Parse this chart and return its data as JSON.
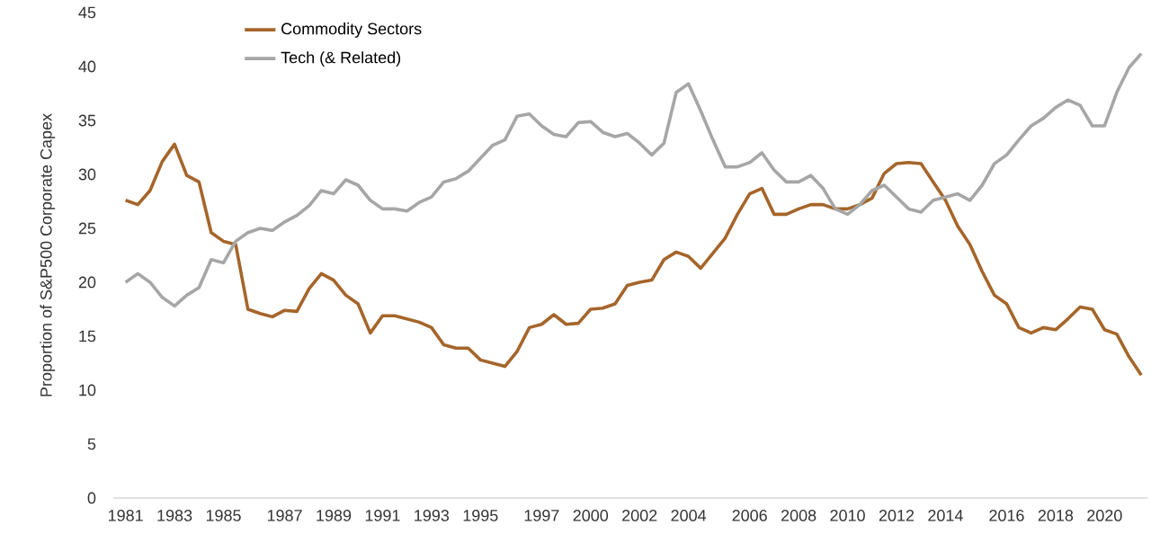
{
  "chart_data": {
    "type": "line",
    "ylabel": "Proportion of S&P500 Corporate Capex",
    "categories": [
      "1981",
      null,
      null,
      null,
      "1983",
      null,
      null,
      null,
      "1985",
      null,
      null,
      null,
      null,
      "1987",
      null,
      null,
      null,
      "1989",
      null,
      null,
      null,
      "1991",
      null,
      null,
      null,
      "1993",
      null,
      null,
      null,
      "1995",
      null,
      null,
      null,
      null,
      "1997",
      null,
      null,
      null,
      "2000",
      null,
      null,
      null,
      "2002",
      null,
      null,
      null,
      "2004",
      null,
      null,
      null,
      null,
      "2006",
      null,
      null,
      null,
      "2008",
      null,
      null,
      null,
      "2010",
      null,
      null,
      null,
      "2012",
      null,
      null,
      null,
      "2014",
      null,
      null,
      null,
      null,
      "2016",
      null,
      null,
      null,
      "2018",
      null,
      null,
      null,
      "2020",
      null,
      null,
      null
    ],
    "series": [
      {
        "name": "Commodity Sectors",
        "color": "#a5652a",
        "values": [
          27.6,
          27.2,
          28.5,
          31.2,
          32.8,
          29.9,
          29.3,
          24.6,
          23.8,
          23.5,
          17.5,
          17.1,
          16.8,
          17.4,
          17.3,
          19.4,
          20.8,
          20.2,
          18.8,
          18.0,
          15.3,
          16.9,
          16.9,
          16.6,
          16.3,
          15.8,
          14.2,
          13.9,
          13.9,
          12.8,
          12.5,
          12.2,
          13.6,
          15.8,
          16.1,
          17.0,
          16.1,
          16.2,
          17.5,
          17.6,
          18.0,
          19.7,
          20.0,
          20.2,
          22.1,
          22.8,
          22.4,
          21.3,
          22.7,
          24.1,
          26.3,
          28.2,
          28.7,
          26.3,
          26.3,
          26.8,
          27.2,
          27.2,
          26.8,
          26.8,
          27.2,
          27.8,
          30.1,
          31.0,
          31.1,
          31.0,
          29.3,
          27.6,
          25.2,
          23.5,
          21.0,
          18.8,
          18.0,
          15.8,
          15.3,
          15.8,
          15.6,
          16.6,
          17.7,
          17.5,
          15.6,
          15.2,
          13.1,
          11.4
        ]
      },
      {
        "name": "Tech (& Related)",
        "color": "#a6a6a6",
        "values": [
          20.0,
          20.8,
          20.0,
          18.6,
          17.8,
          18.8,
          19.5,
          22.1,
          21.8,
          23.8,
          24.6,
          25.0,
          24.8,
          25.6,
          26.2,
          27.1,
          28.5,
          28.2,
          29.5,
          29.0,
          27.6,
          26.8,
          26.8,
          26.6,
          27.4,
          27.9,
          29.3,
          29.6,
          30.3,
          31.5,
          32.7,
          33.2,
          35.4,
          35.6,
          34.5,
          33.7,
          33.5,
          34.8,
          34.9,
          33.9,
          33.5,
          33.8,
          32.9,
          31.8,
          32.9,
          37.6,
          38.4,
          35.9,
          33.2,
          30.7,
          30.7,
          31.1,
          32.0,
          30.4,
          29.3,
          29.3,
          29.9,
          28.7,
          26.8,
          26.3,
          27.2,
          28.5,
          29.0,
          27.9,
          26.8,
          26.5,
          27.6,
          27.9,
          28.2,
          27.6,
          29.0,
          31.0,
          31.8,
          33.2,
          34.5,
          35.2,
          36.2,
          36.9,
          36.4,
          34.5,
          34.5,
          37.6,
          39.9,
          41.2
        ]
      }
    ],
    "ylim": [
      0,
      45
    ],
    "yticks": [
      0,
      5,
      10,
      15,
      20,
      25,
      30,
      35,
      40,
      45
    ],
    "legend": "top left"
  }
}
